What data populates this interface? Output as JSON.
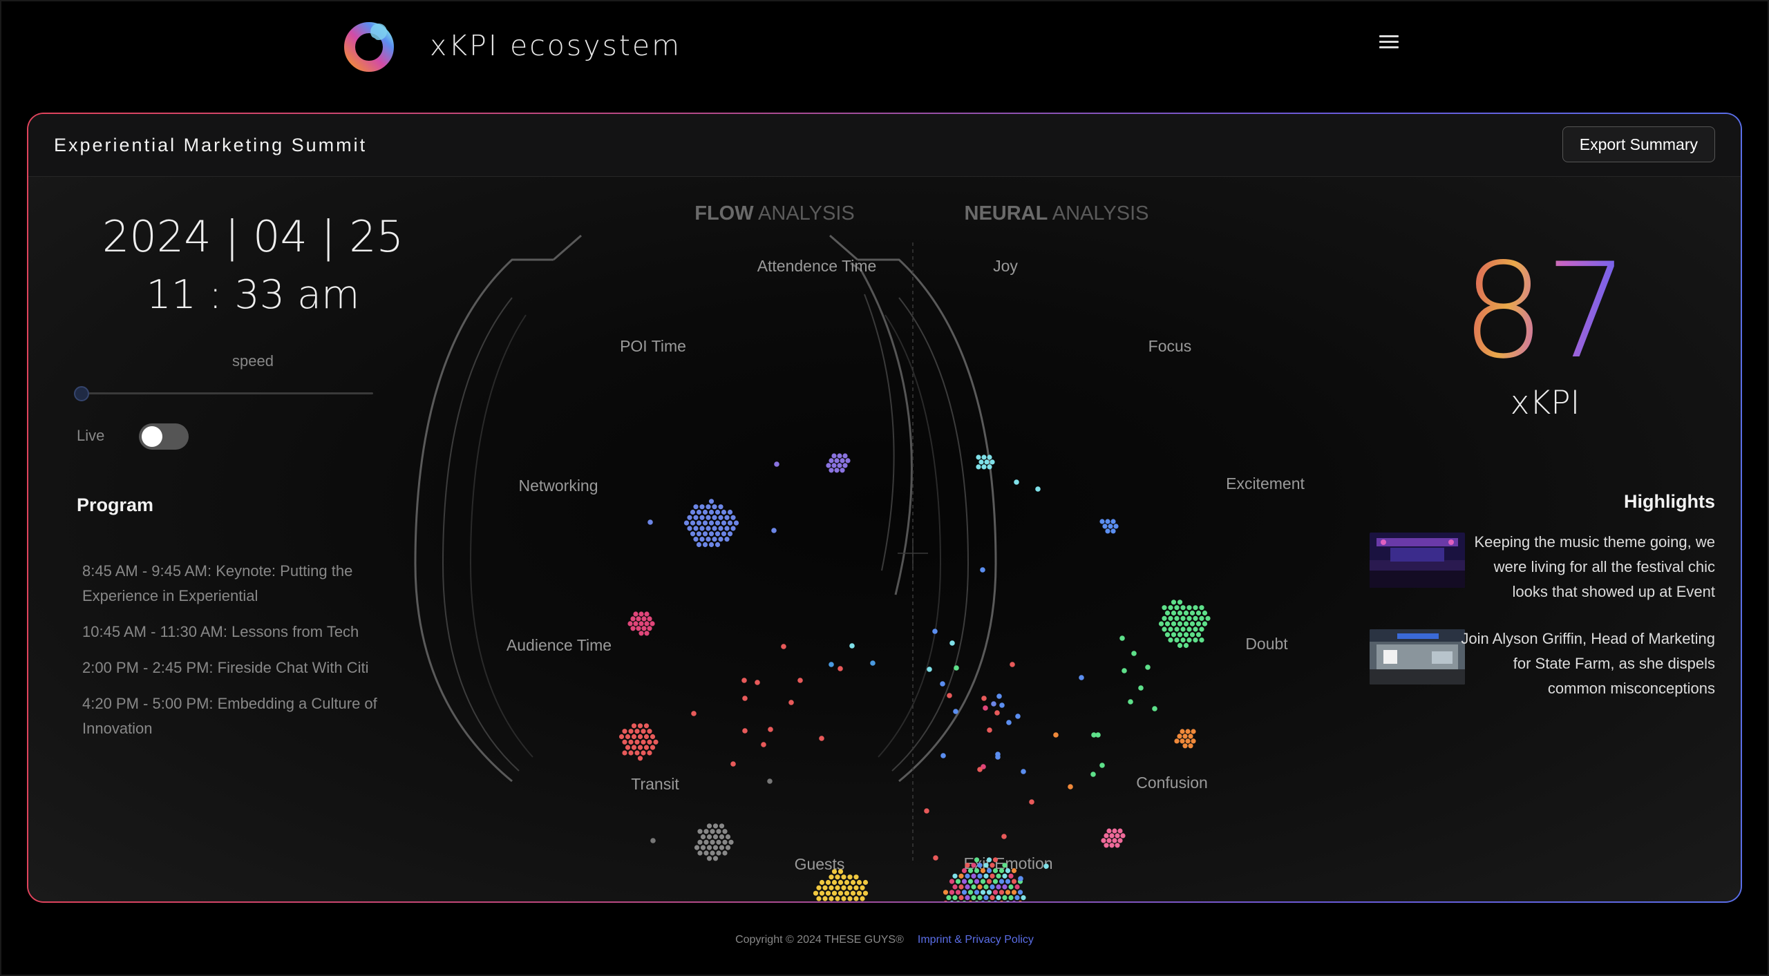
{
  "app": {
    "title": "xKPI ecosystem"
  },
  "event": {
    "title": "Experiential Marketing Summit",
    "export_label": "Export Summary"
  },
  "clock": {
    "date": "2024 | 04 | 25",
    "time": "11 : 33 am"
  },
  "controls": {
    "speed_label": "speed",
    "speed_value": 0,
    "live_label": "Live",
    "live_on": false
  },
  "program": {
    "heading": "Program",
    "items": [
      "8:45 AM - 9:45 AM: Keynote: Putting the Experience in Experiential",
      "10:45 AM - 11:30 AM: Lessons from Tech",
      "2:00 PM - 2:45 PM: Fireside Chat With Citi",
      "4:20 PM - 5:00 PM: Embedding a Culture of Innovation"
    ]
  },
  "analysis": {
    "flow_title_bold": "FLOW",
    "flow_title_rest": " ANALYSIS",
    "neural_title_bold": "NEURAL",
    "neural_title_rest": " ANALYSIS",
    "flow_labels": [
      "Attendence Time",
      "POI Time",
      "Networking",
      "Audience Time",
      "Transit",
      "Guests"
    ],
    "neural_labels": [
      "Joy",
      "Focus",
      "Excitement",
      "Doubt",
      "Confusion",
      "Exit Emotion"
    ]
  },
  "score": {
    "value": "87",
    "label": "xKPI"
  },
  "highlights": {
    "heading": "Highlights",
    "items": [
      {
        "text": "Keeping the music theme going, we were living for all the festival chic looks that showed up at Event"
      },
      {
        "text": "Join Alyson Griffin, Head of Marketing for State Farm, as she dispels common misconceptions"
      }
    ]
  },
  "colors": {
    "flow_blue": "#6c86e6",
    "flow_purple": "#8a73e0",
    "networking_pink": "#e0467a",
    "audience_red": "#e85a5a",
    "transit_gray": "#888888",
    "guests_yellow": "#f0c840",
    "joy_cyan": "#7fe0e8",
    "focus_blue": "#5b8ef0",
    "excitement_green": "#5ee08a",
    "doubt_orange": "#f0893a",
    "confusion_pink": "#f06a9a"
  },
  "footer": {
    "copyright": "Copyright © 2024 THESE GUYS®",
    "link": "Imprint & Privacy Policy"
  }
}
